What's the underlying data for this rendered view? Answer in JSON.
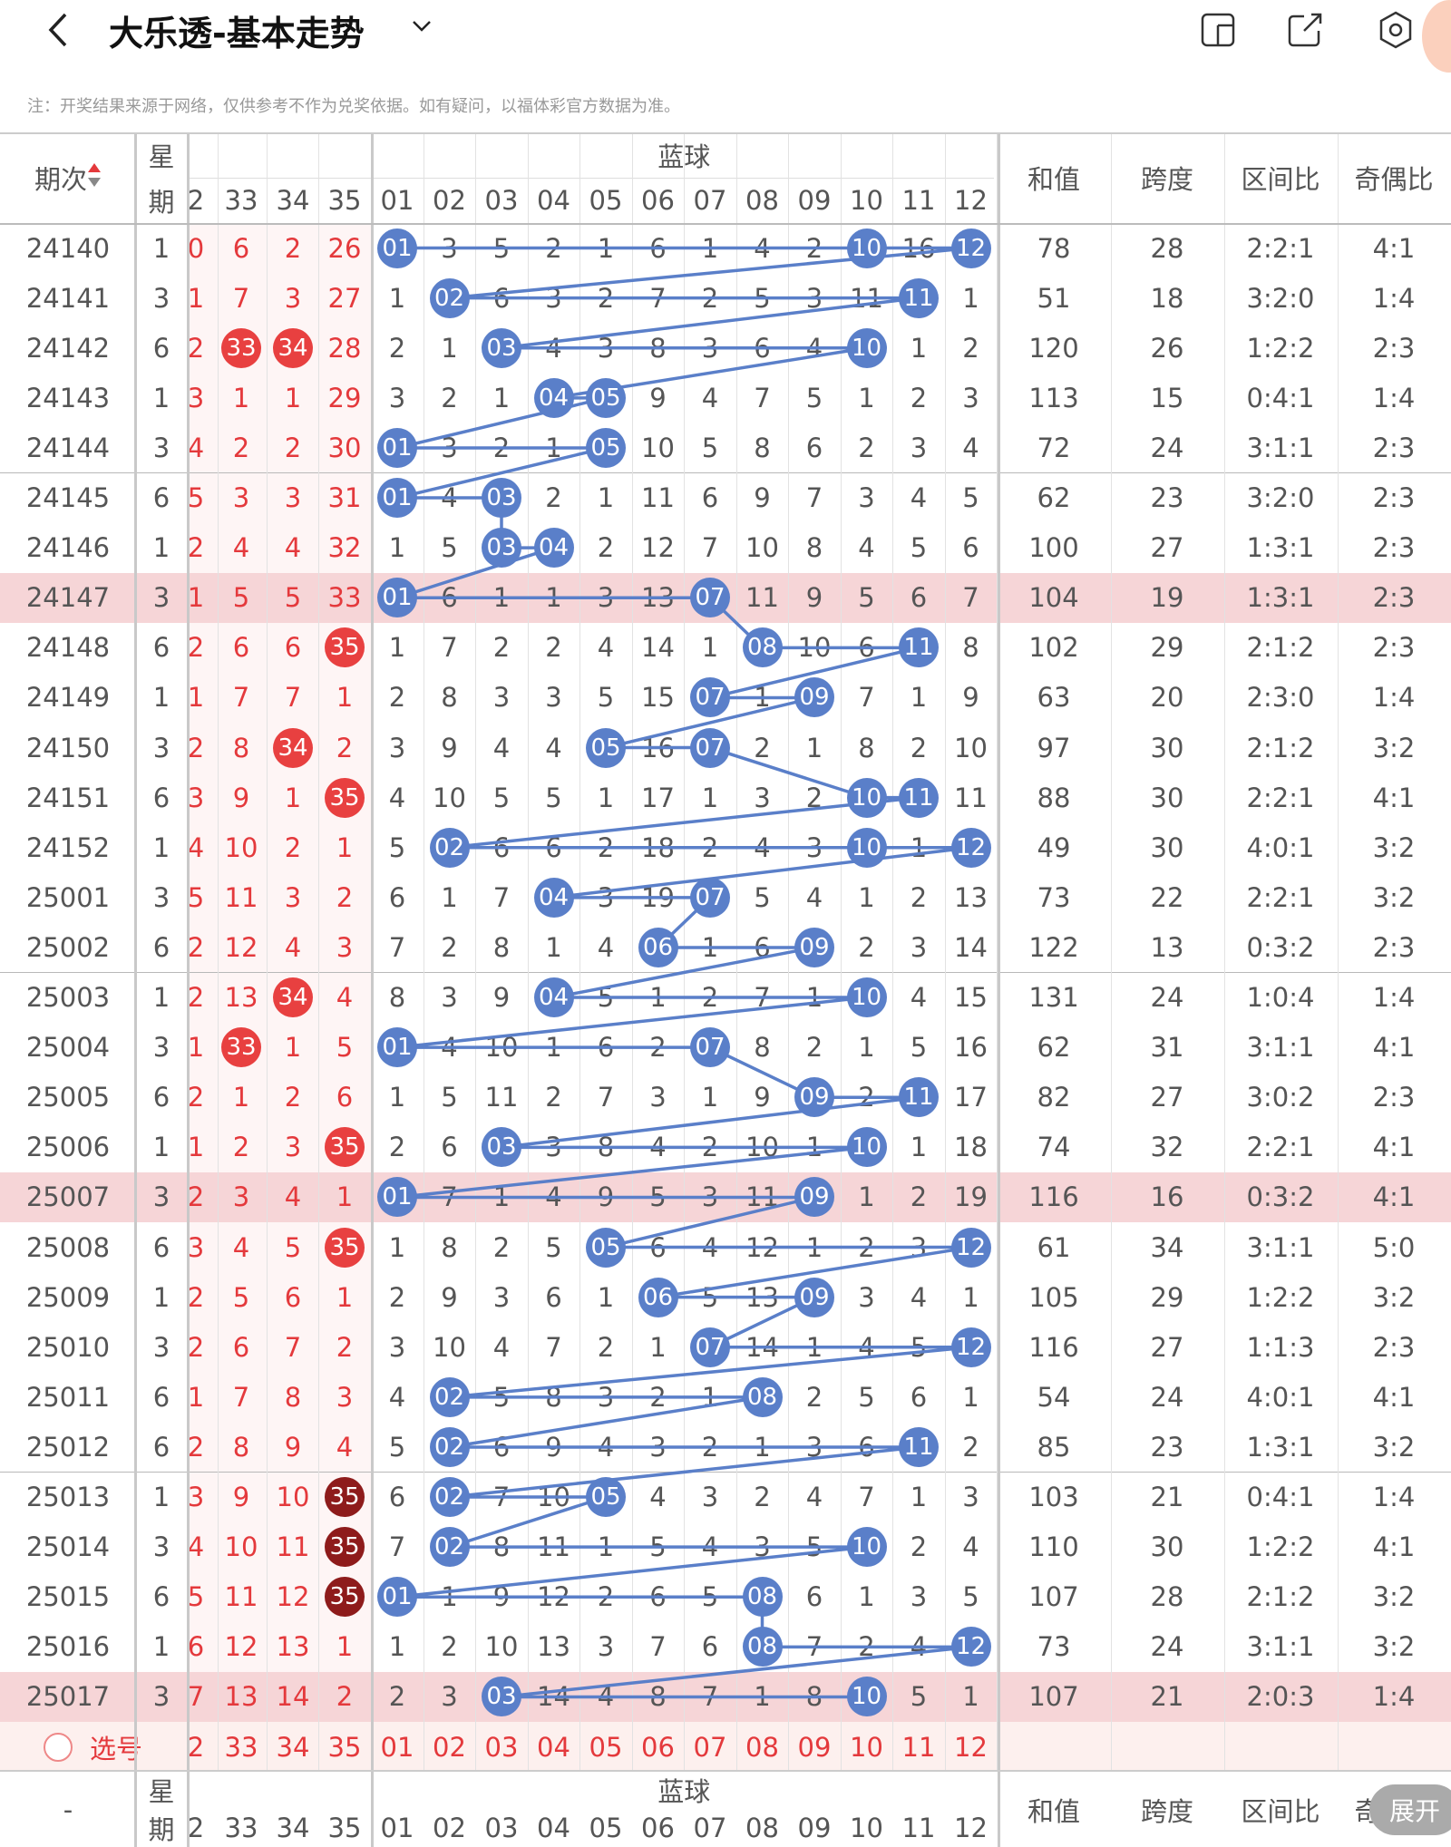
{
  "header": {
    "title": "大乐透-基本走势",
    "notice": "注：开奖结果来源于网络，仅供参考不作为兑奖依据。如有疑问，以福体彩官方数据为准。"
  },
  "table": {
    "col_period": "期次",
    "col_week_1": "星",
    "col_week_2": "期",
    "group_blue": "蓝球",
    "col_sum": "和值",
    "col_span": "跨度",
    "col_zone": "区间比",
    "col_oddeven": "奇偶比",
    "front_cols": [
      "2",
      "33",
      "34",
      "35"
    ],
    "blue_cols": [
      "01",
      "02",
      "03",
      "04",
      "05",
      "06",
      "07",
      "08",
      "09",
      "10",
      "11",
      "12"
    ],
    "rows": [
      {
        "p": "24140",
        "w": "1",
        "f": [
          "0",
          "6",
          "2",
          "26"
        ],
        "b": [
          "01",
          "3",
          "5",
          "2",
          "1",
          "6",
          "1",
          "4",
          "2",
          "10",
          "16",
          "12"
        ],
        "sum": "78",
        "span": "28",
        "zone": "2:2:1",
        "oe": "4:1"
      },
      {
        "p": "24141",
        "w": "3",
        "f": [
          "1",
          "7",
          "3",
          "27"
        ],
        "b": [
          "1",
          "02",
          "6",
          "3",
          "2",
          "7",
          "2",
          "5",
          "3",
          "11",
          "11",
          "1"
        ],
        "sum": "51",
        "span": "18",
        "zone": "3:2:0",
        "oe": "1:4"
      },
      {
        "p": "24142",
        "w": "6",
        "f": [
          "2",
          "33",
          "34",
          "28"
        ],
        "b": [
          "2",
          "1",
          "03",
          "4",
          "3",
          "8",
          "3",
          "6",
          "4",
          "10",
          "1",
          "2"
        ],
        "sum": "120",
        "span": "26",
        "zone": "1:2:2",
        "oe": "2:3"
      },
      {
        "p": "24143",
        "w": "1",
        "f": [
          "3",
          "1",
          "1",
          "29"
        ],
        "b": [
          "3",
          "2",
          "1",
          "04",
          "05",
          "9",
          "4",
          "7",
          "5",
          "1",
          "2",
          "3"
        ],
        "sum": "113",
        "span": "15",
        "zone": "0:4:1",
        "oe": "1:4"
      },
      {
        "p": "24144",
        "w": "3",
        "f": [
          "4",
          "2",
          "2",
          "30"
        ],
        "b": [
          "01",
          "3",
          "2",
          "1",
          "05",
          "10",
          "5",
          "8",
          "6",
          "2",
          "3",
          "4"
        ],
        "sum": "72",
        "span": "24",
        "zone": "3:1:1",
        "oe": "2:3"
      },
      {
        "p": "24145",
        "w": "6",
        "f": [
          "5",
          "3",
          "3",
          "31"
        ],
        "b": [
          "01",
          "4",
          "03",
          "2",
          "1",
          "11",
          "6",
          "9",
          "7",
          "3",
          "4",
          "5"
        ],
        "sum": "62",
        "span": "23",
        "zone": "3:2:0",
        "oe": "2:3"
      },
      {
        "p": "24146",
        "w": "1",
        "f": [
          "2",
          "4",
          "4",
          "32"
        ],
        "b": [
          "1",
          "5",
          "03",
          "04",
          "2",
          "12",
          "7",
          "10",
          "8",
          "4",
          "5",
          "6"
        ],
        "sum": "100",
        "span": "27",
        "zone": "1:3:1",
        "oe": "2:3"
      },
      {
        "p": "24147",
        "w": "3",
        "f": [
          "1",
          "5",
          "5",
          "33"
        ],
        "b": [
          "01",
          "6",
          "1",
          "1",
          "3",
          "13",
          "07",
          "11",
          "9",
          "5",
          "6",
          "7"
        ],
        "sum": "104",
        "span": "19",
        "zone": "1:3:1",
        "oe": "2:3"
      },
      {
        "p": "24148",
        "w": "6",
        "f": [
          "2",
          "6",
          "6",
          "35"
        ],
        "b": [
          "1",
          "7",
          "2",
          "2",
          "4",
          "14",
          "1",
          "08",
          "10",
          "6",
          "11",
          "8"
        ],
        "sum": "102",
        "span": "29",
        "zone": "2:1:2",
        "oe": "2:3"
      },
      {
        "p": "24149",
        "w": "1",
        "f": [
          "1",
          "7",
          "7",
          "1"
        ],
        "b": [
          "2",
          "8",
          "3",
          "3",
          "5",
          "15",
          "07",
          "1",
          "09",
          "7",
          "1",
          "9"
        ],
        "sum": "63",
        "span": "20",
        "zone": "2:3:0",
        "oe": "1:4"
      },
      {
        "p": "24150",
        "w": "3",
        "f": [
          "2",
          "8",
          "34",
          "2"
        ],
        "b": [
          "3",
          "9",
          "4",
          "4",
          "05",
          "16",
          "07",
          "2",
          "1",
          "8",
          "2",
          "10"
        ],
        "sum": "97",
        "span": "30",
        "zone": "2:1:2",
        "oe": "3:2"
      },
      {
        "p": "24151",
        "w": "6",
        "f": [
          "3",
          "9",
          "1",
          "35"
        ],
        "b": [
          "4",
          "10",
          "5",
          "5",
          "1",
          "17",
          "1",
          "3",
          "2",
          "10",
          "11",
          "11"
        ],
        "sum": "88",
        "span": "30",
        "zone": "2:2:1",
        "oe": "4:1"
      },
      {
        "p": "24152",
        "w": "1",
        "f": [
          "4",
          "10",
          "2",
          "1"
        ],
        "b": [
          "5",
          "02",
          "6",
          "6",
          "2",
          "18",
          "2",
          "4",
          "3",
          "10",
          "1",
          "12"
        ],
        "sum": "49",
        "span": "30",
        "zone": "4:0:1",
        "oe": "3:2"
      },
      {
        "p": "25001",
        "w": "3",
        "f": [
          "5",
          "11",
          "3",
          "2"
        ],
        "b": [
          "6",
          "1",
          "7",
          "04",
          "3",
          "19",
          "07",
          "5",
          "4",
          "1",
          "2",
          "13"
        ],
        "sum": "73",
        "span": "22",
        "zone": "2:2:1",
        "oe": "3:2"
      },
      {
        "p": "25002",
        "w": "6",
        "f": [
          "2",
          "12",
          "4",
          "3"
        ],
        "b": [
          "7",
          "2",
          "8",
          "1",
          "4",
          "06",
          "1",
          "6",
          "09",
          "2",
          "3",
          "14"
        ],
        "sum": "122",
        "span": "13",
        "zone": "0:3:2",
        "oe": "2:3"
      },
      {
        "p": "25003",
        "w": "1",
        "f": [
          "2",
          "13",
          "34",
          "4"
        ],
        "b": [
          "8",
          "3",
          "9",
          "04",
          "5",
          "1",
          "2",
          "7",
          "1",
          "10",
          "4",
          "15"
        ],
        "sum": "131",
        "span": "24",
        "zone": "1:0:4",
        "oe": "1:4"
      },
      {
        "p": "25004",
        "w": "3",
        "f": [
          "1",
          "33",
          "1",
          "5"
        ],
        "b": [
          "01",
          "4",
          "10",
          "1",
          "6",
          "2",
          "07",
          "8",
          "2",
          "1",
          "5",
          "16"
        ],
        "sum": "62",
        "span": "31",
        "zone": "3:1:1",
        "oe": "4:1"
      },
      {
        "p": "25005",
        "w": "6",
        "f": [
          "2",
          "1",
          "2",
          "6"
        ],
        "b": [
          "1",
          "5",
          "11",
          "2",
          "7",
          "3",
          "1",
          "9",
          "09",
          "2",
          "11",
          "17"
        ],
        "sum": "82",
        "span": "27",
        "zone": "3:0:2",
        "oe": "2:3"
      },
      {
        "p": "25006",
        "w": "1",
        "f": [
          "1",
          "2",
          "3",
          "35"
        ],
        "b": [
          "2",
          "6",
          "03",
          "3",
          "8",
          "4",
          "2",
          "10",
          "1",
          "10",
          "1",
          "18"
        ],
        "sum": "74",
        "span": "32",
        "zone": "2:2:1",
        "oe": "4:1"
      },
      {
        "p": "25007",
        "w": "3",
        "f": [
          "2",
          "3",
          "4",
          "1"
        ],
        "b": [
          "01",
          "7",
          "1",
          "4",
          "9",
          "5",
          "3",
          "11",
          "09",
          "1",
          "2",
          "19"
        ],
        "sum": "116",
        "span": "16",
        "zone": "0:3:2",
        "oe": "4:1"
      },
      {
        "p": "25008",
        "w": "6",
        "f": [
          "3",
          "4",
          "5",
          "35"
        ],
        "b": [
          "1",
          "8",
          "2",
          "5",
          "05",
          "6",
          "4",
          "12",
          "1",
          "2",
          "3",
          "12"
        ],
        "sum": "61",
        "span": "34",
        "zone": "3:1:1",
        "oe": "5:0"
      },
      {
        "p": "25009",
        "w": "1",
        "f": [
          "2",
          "5",
          "6",
          "1"
        ],
        "b": [
          "2",
          "9",
          "3",
          "6",
          "1",
          "06",
          "5",
          "13",
          "09",
          "3",
          "4",
          "1"
        ],
        "sum": "105",
        "span": "29",
        "zone": "1:2:2",
        "oe": "3:2"
      },
      {
        "p": "25010",
        "w": "3",
        "f": [
          "2",
          "6",
          "7",
          "2"
        ],
        "b": [
          "3",
          "10",
          "4",
          "7",
          "2",
          "1",
          "07",
          "14",
          "1",
          "4",
          "5",
          "12"
        ],
        "sum": "116",
        "span": "27",
        "zone": "1:1:3",
        "oe": "2:3"
      },
      {
        "p": "25011",
        "w": "6",
        "f": [
          "1",
          "7",
          "8",
          "3"
        ],
        "b": [
          "4",
          "02",
          "5",
          "8",
          "3",
          "2",
          "1",
          "08",
          "2",
          "5",
          "6",
          "1"
        ],
        "sum": "54",
        "span": "24",
        "zone": "4:0:1",
        "oe": "4:1"
      },
      {
        "p": "25012",
        "w": "6",
        "f": [
          "2",
          "8",
          "9",
          "4"
        ],
        "b": [
          "5",
          "02",
          "6",
          "9",
          "4",
          "3",
          "2",
          "1",
          "3",
          "6",
          "11",
          "2"
        ],
        "sum": "85",
        "span": "23",
        "zone": "1:3:1",
        "oe": "3:2"
      },
      {
        "p": "25013",
        "w": "1",
        "f": [
          "3",
          "9",
          "10",
          "35"
        ],
        "b": [
          "6",
          "02",
          "7",
          "10",
          "05",
          "4",
          "3",
          "2",
          "4",
          "7",
          "1",
          "3"
        ],
        "sum": "103",
        "span": "21",
        "zone": "0:4:1",
        "oe": "1:4"
      },
      {
        "p": "25014",
        "w": "3",
        "f": [
          "4",
          "10",
          "11",
          "35"
        ],
        "b": [
          "7",
          "02",
          "8",
          "11",
          "1",
          "5",
          "4",
          "3",
          "5",
          "10",
          "2",
          "4"
        ],
        "sum": "110",
        "span": "30",
        "zone": "1:2:2",
        "oe": "4:1"
      },
      {
        "p": "25015",
        "w": "6",
        "f": [
          "5",
          "11",
          "12",
          "35"
        ],
        "b": [
          "01",
          "1",
          "9",
          "12",
          "2",
          "6",
          "5",
          "08",
          "6",
          "1",
          "3",
          "5"
        ],
        "sum": "107",
        "span": "28",
        "zone": "2:1:2",
        "oe": "3:2"
      },
      {
        "p": "25016",
        "w": "1",
        "f": [
          "6",
          "12",
          "13",
          "1"
        ],
        "b": [
          "1",
          "2",
          "10",
          "13",
          "3",
          "7",
          "6",
          "08",
          "7",
          "2",
          "4",
          "12"
        ],
        "sum": "73",
        "span": "24",
        "zone": "3:1:1",
        "oe": "3:2"
      },
      {
        "p": "25017",
        "w": "3",
        "f": [
          "7",
          "13",
          "14",
          "2"
        ],
        "b": [
          "2",
          "3",
          "03",
          "14",
          "4",
          "8",
          "7",
          "1",
          "8",
          "10",
          "5",
          "1"
        ],
        "sum": "107",
        "span": "21",
        "zone": "2:0:3",
        "oe": "1:4"
      }
    ],
    "select_label": "选号",
    "bottom_dash": "-",
    "bottom_oe_partial": "奇",
    "expand_label": "展开"
  },
  "colors": {
    "blue": "#5a7fc9",
    "red": "#e84040",
    "dark_red": "#8e1b1b",
    "highlight": "#f6d5d7"
  }
}
